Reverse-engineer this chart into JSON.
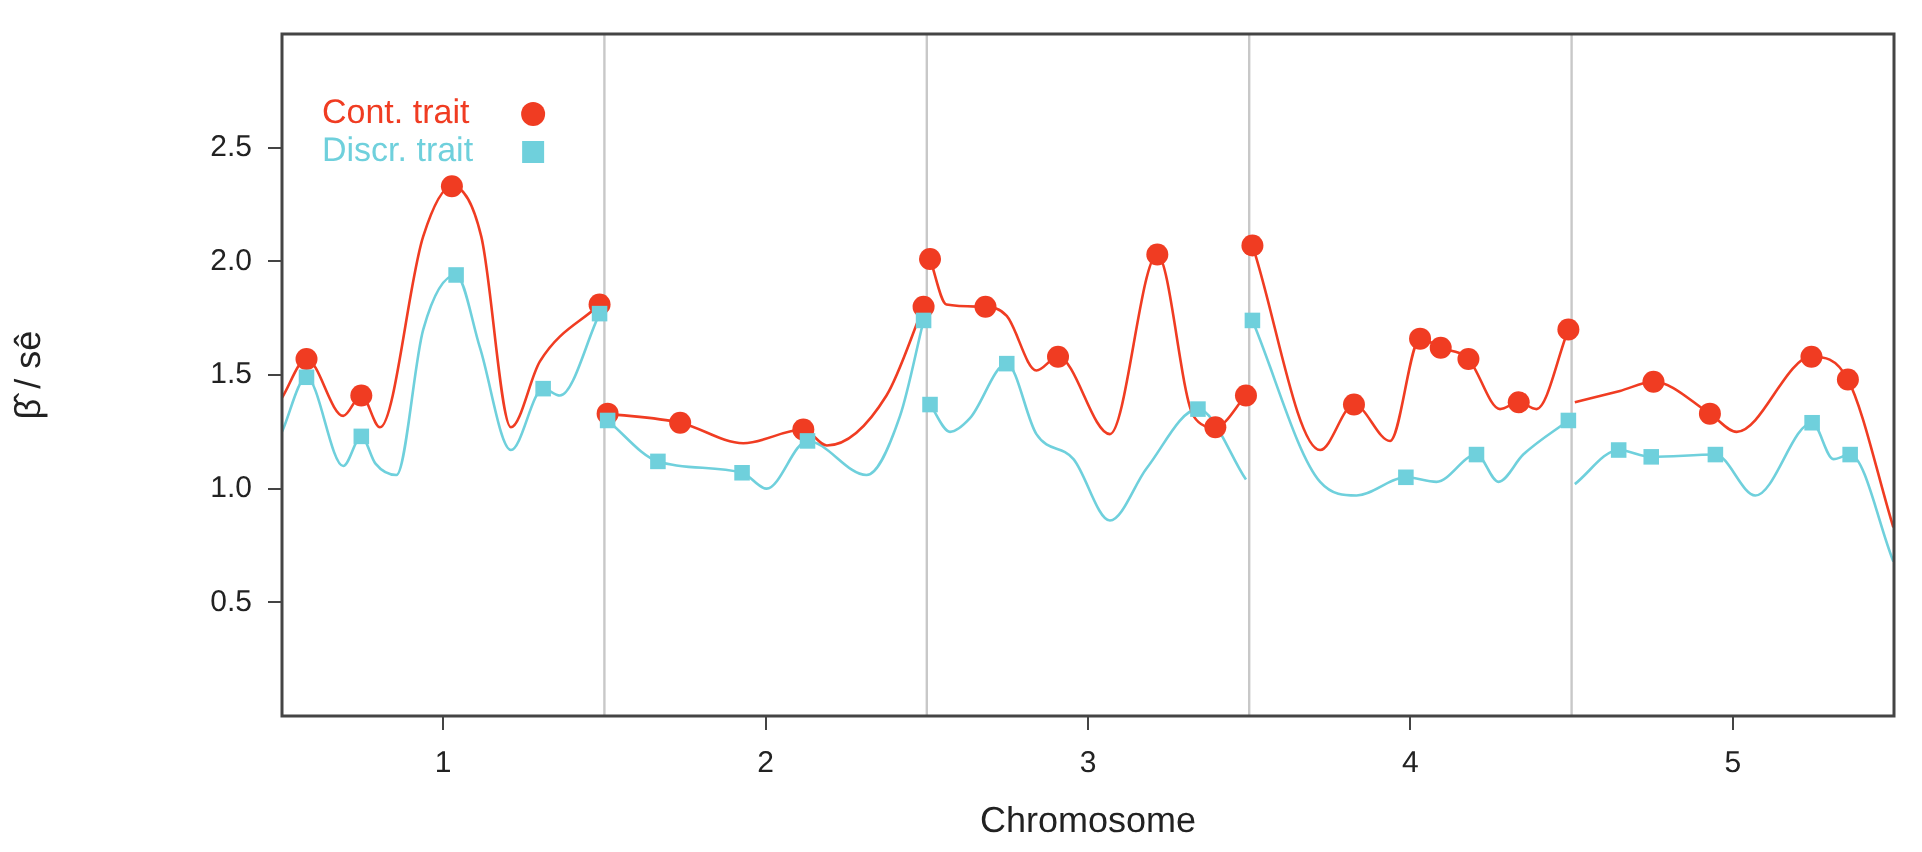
{
  "chart_data": {
    "type": "line",
    "xlabel": "Chromosome",
    "ylabel": "β̂ / sê",
    "xlim": [
      0.5,
      5.5
    ],
    "xticks": [
      1,
      2,
      3,
      4,
      5
    ],
    "ylim": [
      0,
      3
    ],
    "yticks": [
      0.5,
      {
        "value": 1,
        "label": "1.0"
      },
      1.5,
      {
        "value": 2,
        "label": "2.0"
      },
      2.5
    ],
    "grid": false,
    "legend": "top left",
    "line_style": "solid",
    "ref_lines": [
      {
        "axis": "x",
        "value": 1.5,
        "color": "#c8c8c8"
      },
      {
        "axis": "x",
        "value": 2.5,
        "color": "#c8c8c8"
      },
      {
        "axis": "x",
        "value": 3.5,
        "color": "#c8c8c8"
      },
      {
        "axis": "x",
        "value": 4.5,
        "color": "#c8c8c8"
      }
    ],
    "series": [
      {
        "type": "line",
        "color": "#f03c22",
        "marker": "none",
        "x": [
          0.5,
          0.576,
          0.69,
          0.746,
          0.804,
          0.938,
          1.027,
          1.118,
          1.21,
          1.3,
          1.485,
          1.5,
          1.51,
          1.735,
          1.931,
          2.117,
          2.19,
          2.375,
          2.49,
          2.5,
          2.51,
          2.561,
          2.682,
          2.748,
          2.84,
          2.907,
          3.068,
          3.215,
          3.327,
          3.395,
          3.49,
          3.5,
          3.51,
          3.72,
          3.825,
          3.937,
          4.03,
          4.094,
          4.18,
          4.278,
          4.336,
          4.391,
          4.49,
          4.5,
          4.51,
          4.65,
          4.754,
          4.929,
          5.012,
          5.244,
          5.357,
          5.498
        ],
        "values": [
          1.4,
          1.57,
          1.32,
          1.41,
          1.27,
          2.11,
          2.33,
          2.11,
          1.27,
          1.56,
          1.81,
          null,
          1.33,
          1.29,
          1.2,
          1.26,
          1.19,
          1.41,
          1.8,
          null,
          2.01,
          1.81,
          1.8,
          1.76,
          1.52,
          1.58,
          1.24,
          2.03,
          1.32,
          1.27,
          1.41,
          null,
          2.07,
          1.17,
          1.37,
          1.21,
          1.66,
          1.62,
          1.57,
          1.35,
          1.38,
          1.35,
          1.7,
          null,
          1.38,
          1.43,
          1.47,
          1.33,
          1.25,
          1.58,
          1.48,
          0.83
        ]
      },
      {
        "type": "line",
        "color": "#6fd0dc",
        "marker": "none",
        "x": [
          0.5,
          0.576,
          0.69,
          0.746,
          0.79,
          0.855,
          0.938,
          1.04,
          1.114,
          1.21,
          1.31,
          1.362,
          1.485,
          1.5,
          1.51,
          1.666,
          1.927,
          2.003,
          2.13,
          2.313,
          2.417,
          2.49,
          2.5,
          2.51,
          2.572,
          2.634,
          2.748,
          2.84,
          2.955,
          3.068,
          3.182,
          3.341,
          3.49,
          3.5,
          3.51,
          3.72,
          3.833,
          3.986,
          4.081,
          4.205,
          4.273,
          4.35,
          4.49,
          4.5,
          4.51,
          4.646,
          4.747,
          4.946,
          5.07,
          5.246,
          5.312,
          5.364,
          5.498
        ],
        "values": [
          1.25,
          1.49,
          1.1,
          1.23,
          1.11,
          1.06,
          1.7,
          1.94,
          1.62,
          1.17,
          1.44,
          1.41,
          1.77,
          null,
          1.3,
          1.12,
          1.07,
          1.0,
          1.21,
          1.06,
          1.32,
          1.74,
          null,
          1.37,
          1.25,
          1.31,
          1.55,
          1.24,
          1.13,
          0.86,
          1.09,
          1.35,
          1.04,
          null,
          1.74,
          1.03,
          0.97,
          1.05,
          1.03,
          1.15,
          1.03,
          1.15,
          1.3,
          null,
          1.02,
          1.17,
          1.14,
          1.15,
          0.97,
          1.29,
          1.13,
          1.15,
          0.68
        ]
      },
      {
        "type": "scatter",
        "name": "Cont. trait",
        "color": "#f03c22",
        "marker": "circle",
        "x": [
          0.576,
          0.746,
          1.027,
          1.485,
          1.51,
          1.735,
          2.117,
          2.49,
          2.51,
          2.682,
          2.907,
          3.215,
          3.395,
          3.49,
          3.51,
          3.825,
          4.03,
          4.094,
          4.18,
          4.336,
          4.49,
          4.754,
          4.929,
          5.244,
          5.357
        ],
        "values": [
          1.57,
          1.41,
          2.33,
          1.81,
          1.33,
          1.29,
          1.26,
          1.8,
          2.01,
          1.8,
          1.58,
          2.03,
          1.27,
          1.41,
          2.07,
          1.37,
          1.66,
          1.62,
          1.57,
          1.38,
          1.7,
          1.47,
          1.33,
          1.58,
          1.48
        ]
      },
      {
        "type": "scatter",
        "name": "Discr. trait",
        "color": "#6fd0dc",
        "marker": "square",
        "x": [
          0.576,
          0.746,
          1.04,
          1.31,
          1.485,
          1.51,
          1.666,
          1.927,
          2.13,
          2.49,
          2.51,
          2.748,
          3.341,
          3.51,
          3.986,
          4.205,
          4.49,
          4.646,
          4.747,
          4.946,
          5.246,
          5.364
        ],
        "values": [
          1.49,
          1.23,
          1.94,
          1.44,
          1.77,
          1.3,
          1.12,
          1.07,
          1.21,
          1.74,
          1.37,
          1.55,
          1.35,
          1.74,
          1.05,
          1.15,
          1.3,
          1.17,
          1.14,
          1.15,
          1.29,
          1.15
        ]
      }
    ]
  }
}
